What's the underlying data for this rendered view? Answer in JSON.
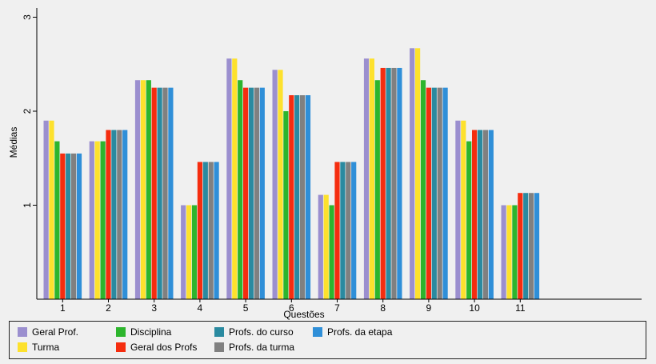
{
  "chart_data": {
    "type": "bar",
    "categories": [
      "1",
      "2",
      "3",
      "4",
      "5",
      "6",
      "7",
      "8",
      "9",
      "10",
      "11"
    ],
    "series": [
      {
        "name": "Geral Prof.",
        "color": "#9b8fcf",
        "values": [
          1.9,
          1.68,
          2.33,
          1.0,
          2.56,
          2.44,
          1.11,
          2.56,
          2.67,
          1.9,
          1.0
        ]
      },
      {
        "name": "Turma",
        "color": "#fde12d",
        "values": [
          1.9,
          1.68,
          2.33,
          1.0,
          2.56,
          2.44,
          1.11,
          2.56,
          2.67,
          1.9,
          1.0
        ]
      },
      {
        "name": "Disciplina",
        "color": "#2db52d",
        "values": [
          1.68,
          1.68,
          2.33,
          1.0,
          2.33,
          2.0,
          1.0,
          2.33,
          2.33,
          1.68,
          1.0
        ]
      },
      {
        "name": "Geral dos Profs",
        "color": "#f52d0f",
        "values": [
          1.55,
          1.8,
          2.25,
          1.46,
          2.25,
          2.17,
          1.46,
          2.46,
          2.25,
          1.8,
          1.13
        ]
      },
      {
        "name": "Profs. do curso",
        "color": "#2a8aa0",
        "values": [
          1.55,
          1.8,
          2.25,
          1.46,
          2.25,
          2.17,
          1.46,
          2.46,
          2.25,
          1.8,
          1.13
        ]
      },
      {
        "name": "Profs. da turma",
        "color": "#808080",
        "values": [
          1.55,
          1.8,
          2.25,
          1.46,
          2.25,
          2.17,
          1.46,
          2.46,
          2.25,
          1.8,
          1.13
        ]
      },
      {
        "name": "Profs. da etapa",
        "color": "#2f8fd8",
        "values": [
          1.55,
          1.8,
          2.25,
          1.46,
          2.25,
          2.17,
          1.46,
          2.46,
          2.25,
          1.8,
          1.13
        ]
      }
    ],
    "xlabel": "Questões",
    "ylabel": "Médias",
    "yticks": [
      1,
      2,
      3
    ],
    "ylim": [
      0,
      3.1
    ],
    "grid": false,
    "legend_position": "bottom"
  }
}
